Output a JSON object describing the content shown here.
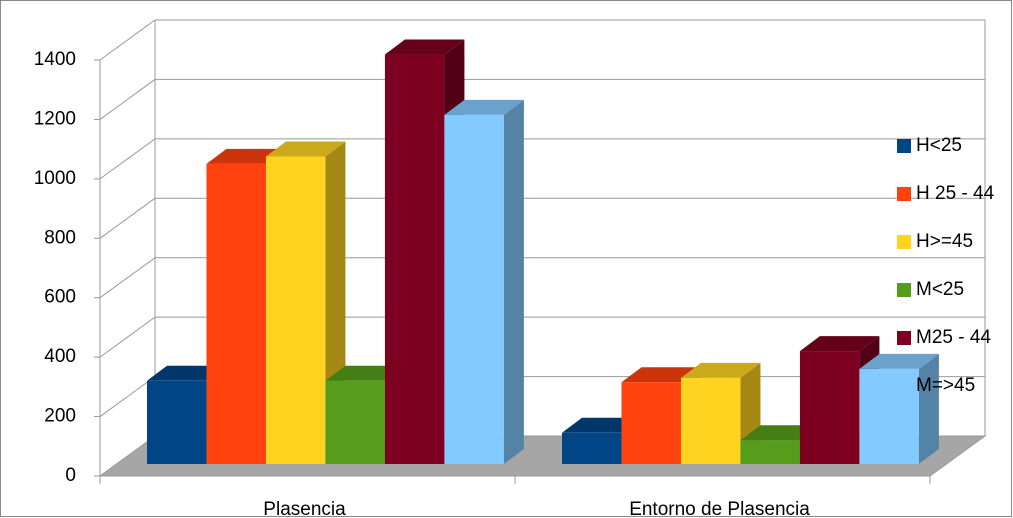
{
  "chart_data": {
    "type": "bar3d",
    "categories": [
      "Plasencia",
      "Entorno de Plasencia"
    ],
    "series": [
      {
        "name": "H<25",
        "color": "#004586",
        "values": [
          280,
          105
        ]
      },
      {
        "name": "H 25 - 44",
        "color": "#ff420e",
        "values": [
          1010,
          275
        ]
      },
      {
        "name": "H>=45",
        "color": "#ffd320",
        "values": [
          1035,
          290
        ]
      },
      {
        "name": "M<25",
        "color": "#579d1c",
        "values": [
          280,
          80
        ]
      },
      {
        "name": "M25 - 44",
        "color": "#7e0021",
        "values": [
          1378,
          380
        ]
      },
      {
        "name": "M=>45",
        "color": "#83caff",
        "values": [
          1175,
          320
        ]
      }
    ],
    "ylim": [
      0,
      1400
    ],
    "yticks": [
      0,
      200,
      400,
      600,
      800,
      1000,
      1200,
      1400
    ],
    "grid": true,
    "legend": "right"
  }
}
